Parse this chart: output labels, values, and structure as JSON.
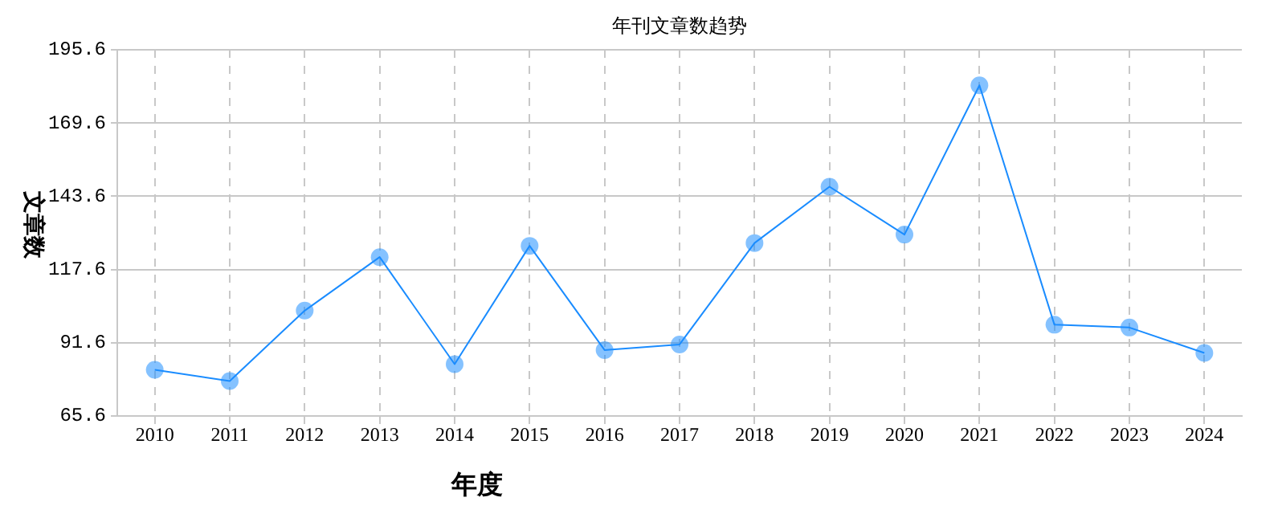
{
  "chart_data": {
    "type": "line",
    "title": "年刊文章数趋势",
    "xlabel": "年度",
    "ylabel": "文章数",
    "categories": [
      "2010",
      "2011",
      "2012",
      "2013",
      "2014",
      "2015",
      "2016",
      "2017",
      "2018",
      "2019",
      "2020",
      "2021",
      "2022",
      "2023",
      "2024"
    ],
    "series": [
      {
        "color": "#1a8cff",
        "values": [
          82,
          78,
          103,
          122,
          84,
          126,
          89,
          91,
          127,
          147,
          130,
          183,
          98,
          97,
          88
        ]
      }
    ],
    "ylim": [
      65.6,
      195.6
    ],
    "yticks": [
      65.6,
      91.6,
      117.6,
      143.6,
      169.6,
      195.6
    ],
    "grid": true,
    "marker": "circle",
    "line_style": "solid",
    "legend": false
  }
}
